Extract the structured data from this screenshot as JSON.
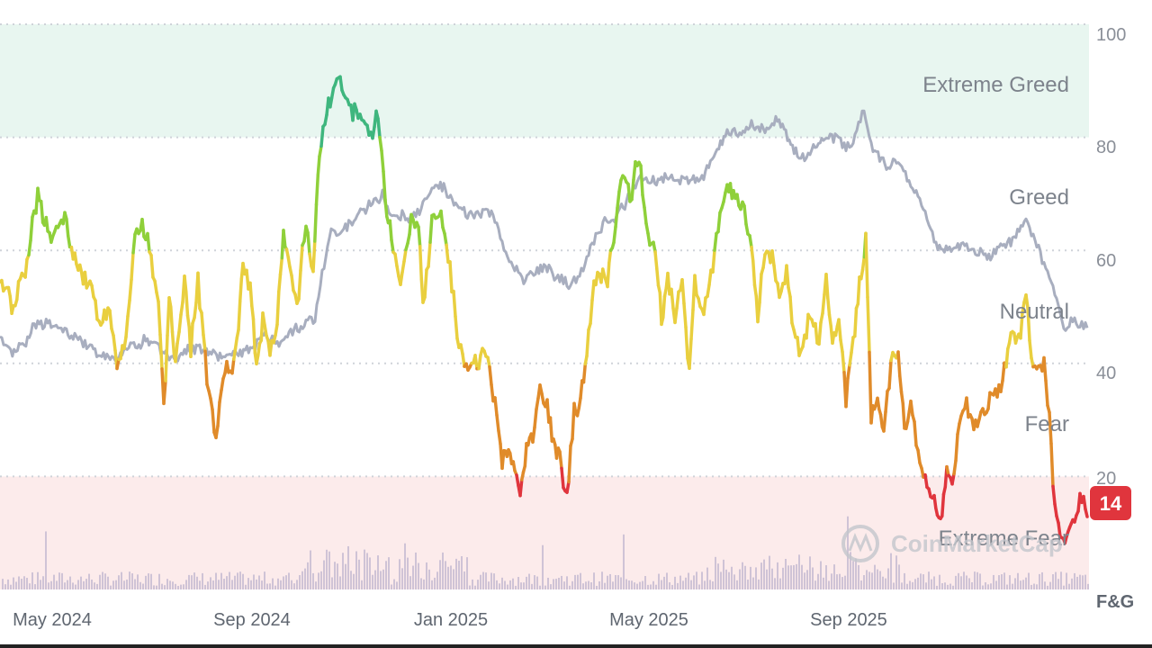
{
  "chart_data": {
    "type": "line",
    "axis_title": "F&G",
    "ylim": [
      0,
      100
    ],
    "y_ticks": [
      20,
      40,
      60,
      80,
      100
    ],
    "x_ticks": [
      "May 2024",
      "Sep 2024",
      "Jan 2025",
      "May 2025",
      "Sep 2025"
    ],
    "grid": true,
    "zones": [
      {
        "name": "Extreme Greed",
        "from": 80,
        "to": 100,
        "color": "#e8f6f0"
      },
      {
        "name": "Greed",
        "from": 60,
        "to": 80
      },
      {
        "name": "Neutral",
        "from": 40,
        "to": 60
      },
      {
        "name": "Fear",
        "from": 20,
        "to": 40
      },
      {
        "name": "Extreme Fear",
        "from": 0,
        "to": 20,
        "color": "#fcebeb"
      }
    ],
    "current_value": "14",
    "watermark": "CoinMarketCap",
    "colors": {
      "extreme_greed": "#3fb67e",
      "greed": "#8fd03a",
      "neutral": "#e9cf3f",
      "fear": "#e08b2a",
      "extreme_fear": "#e0353d",
      "price_line": "#a8aebf",
      "volume": "#cfc3d6",
      "badge": "#e0353d"
    },
    "series": [
      {
        "role": "index",
        "points": [
          [
            0,
            55
          ],
          [
            15,
            50
          ],
          [
            30,
            58
          ],
          [
            42,
            70
          ],
          [
            55,
            62
          ],
          [
            72,
            66
          ],
          [
            85,
            58
          ],
          [
            100,
            54
          ],
          [
            112,
            47
          ],
          [
            122,
            49
          ],
          [
            130,
            40
          ],
          [
            140,
            44
          ],
          [
            150,
            62
          ],
          [
            158,
            66
          ],
          [
            168,
            58
          ],
          [
            176,
            50
          ],
          [
            182,
            32
          ],
          [
            188,
            52
          ],
          [
            195,
            40
          ],
          [
            205,
            56
          ],
          [
            212,
            42
          ],
          [
            220,
            55
          ],
          [
            230,
            38
          ],
          [
            240,
            27
          ],
          [
            250,
            40
          ],
          [
            258,
            38
          ],
          [
            265,
            46
          ],
          [
            270,
            58
          ],
          [
            278,
            54
          ],
          [
            285,
            40
          ],
          [
            292,
            48
          ],
          [
            300,
            41
          ],
          [
            308,
            48
          ],
          [
            315,
            64
          ],
          [
            322,
            58
          ],
          [
            330,
            50
          ],
          [
            340,
            66
          ],
          [
            348,
            55
          ],
          [
            355,
            78
          ],
          [
            365,
            86
          ],
          [
            378,
            90
          ],
          [
            390,
            84
          ],
          [
            400,
            85
          ],
          [
            410,
            80
          ],
          [
            420,
            84
          ],
          [
            428,
            70
          ],
          [
            435,
            62
          ],
          [
            445,
            55
          ],
          [
            455,
            64
          ],
          [
            465,
            66
          ],
          [
            470,
            50
          ],
          [
            480,
            65
          ],
          [
            490,
            66
          ],
          [
            500,
            56
          ],
          [
            510,
            44
          ],
          [
            520,
            38
          ],
          [
            530,
            40
          ],
          [
            540,
            42
          ],
          [
            550,
            33
          ],
          [
            558,
            22
          ],
          [
            565,
            25
          ],
          [
            572,
            21
          ],
          [
            578,
            17
          ],
          [
            585,
            24
          ],
          [
            592,
            28
          ],
          [
            600,
            35
          ],
          [
            608,
            32
          ],
          [
            615,
            25
          ],
          [
            622,
            24
          ],
          [
            630,
            16
          ],
          [
            638,
            31
          ],
          [
            645,
            34
          ],
          [
            652,
            42
          ],
          [
            660,
            53
          ],
          [
            668,
            56
          ],
          [
            675,
            55
          ],
          [
            682,
            62
          ],
          [
            690,
            74
          ],
          [
            700,
            69
          ],
          [
            710,
            77
          ],
          [
            720,
            62
          ],
          [
            728,
            60
          ],
          [
            735,
            48
          ],
          [
            742,
            56
          ],
          [
            750,
            48
          ],
          [
            758,
            56
          ],
          [
            766,
            38
          ],
          [
            772,
            54
          ],
          [
            780,
            48
          ],
          [
            790,
            56
          ],
          [
            800,
            66
          ],
          [
            808,
            71
          ],
          [
            815,
            70
          ],
          [
            825,
            68
          ],
          [
            835,
            62
          ],
          [
            842,
            48
          ],
          [
            850,
            60
          ],
          [
            858,
            58
          ],
          [
            866,
            52
          ],
          [
            874,
            56
          ],
          [
            882,
            44
          ],
          [
            890,
            42
          ],
          [
            900,
            48
          ],
          [
            910,
            44
          ],
          [
            918,
            54
          ],
          [
            925,
            44
          ],
          [
            932,
            48
          ],
          [
            940,
            34
          ],
          [
            948,
            43
          ],
          [
            955,
            54
          ],
          [
            962,
            62
          ],
          [
            968,
            30
          ],
          [
            975,
            35
          ],
          [
            982,
            28
          ],
          [
            990,
            40
          ],
          [
            998,
            43
          ],
          [
            1005,
            28
          ],
          [
            1012,
            33
          ],
          [
            1020,
            24
          ],
          [
            1030,
            18
          ],
          [
            1038,
            16
          ],
          [
            1045,
            12
          ],
          [
            1052,
            20
          ],
          [
            1060,
            19
          ],
          [
            1066,
            30
          ],
          [
            1074,
            33
          ],
          [
            1082,
            28
          ],
          [
            1090,
            31
          ],
          [
            1100,
            33
          ],
          [
            1110,
            36
          ],
          [
            1118,
            40
          ],
          [
            1125,
            45
          ],
          [
            1132,
            44
          ],
          [
            1140,
            53
          ],
          [
            1146,
            40
          ],
          [
            1152,
            38
          ],
          [
            1160,
            40
          ],
          [
            1166,
            30
          ],
          [
            1172,
            15
          ],
          [
            1178,
            10
          ],
          [
            1185,
            9
          ],
          [
            1192,
            12
          ],
          [
            1200,
            15
          ],
          [
            1208,
            14
          ]
        ]
      },
      {
        "role": "price",
        "points": [
          [
            0,
            45
          ],
          [
            10,
            42
          ],
          [
            25,
            43
          ],
          [
            40,
            47
          ],
          [
            55,
            47
          ],
          [
            70,
            46
          ],
          [
            85,
            45
          ],
          [
            100,
            43
          ],
          [
            115,
            41
          ],
          [
            130,
            41
          ],
          [
            145,
            43
          ],
          [
            160,
            44
          ],
          [
            175,
            43
          ],
          [
            190,
            41
          ],
          [
            205,
            42
          ],
          [
            220,
            43
          ],
          [
            235,
            42
          ],
          [
            250,
            41
          ],
          [
            265,
            42
          ],
          [
            280,
            43
          ],
          [
            295,
            45
          ],
          [
            310,
            44
          ],
          [
            325,
            46
          ],
          [
            340,
            47
          ],
          [
            350,
            48
          ],
          [
            358,
            56
          ],
          [
            368,
            63
          ],
          [
            380,
            63
          ],
          [
            395,
            66
          ],
          [
            410,
            68
          ],
          [
            425,
            70
          ],
          [
            432,
            67
          ],
          [
            445,
            66
          ],
          [
            458,
            66
          ],
          [
            470,
            68
          ],
          [
            482,
            71
          ],
          [
            495,
            71
          ],
          [
            510,
            67
          ],
          [
            525,
            66
          ],
          [
            540,
            67
          ],
          [
            552,
            65
          ],
          [
            560,
            60
          ],
          [
            570,
            57
          ],
          [
            580,
            55
          ],
          [
            595,
            56
          ],
          [
            610,
            57
          ],
          [
            620,
            55
          ],
          [
            630,
            54
          ],
          [
            640,
            55
          ],
          [
            650,
            57
          ],
          [
            660,
            62
          ],
          [
            672,
            65
          ],
          [
            685,
            66
          ],
          [
            698,
            69
          ],
          [
            710,
            73
          ],
          [
            722,
            72
          ],
          [
            735,
            73
          ],
          [
            750,
            73
          ],
          [
            765,
            72
          ],
          [
            780,
            73
          ],
          [
            795,
            77
          ],
          [
            808,
            81
          ],
          [
            820,
            81
          ],
          [
            835,
            82
          ],
          [
            850,
            81
          ],
          [
            862,
            83
          ],
          [
            875,
            80
          ],
          [
            888,
            76
          ],
          [
            900,
            77
          ],
          [
            915,
            80
          ],
          [
            928,
            80
          ],
          [
            940,
            78
          ],
          [
            950,
            80
          ],
          [
            960,
            85
          ],
          [
            970,
            78
          ],
          [
            985,
            75
          ],
          [
            998,
            76
          ],
          [
            1010,
            72
          ],
          [
            1022,
            69
          ],
          [
            1032,
            65
          ],
          [
            1042,
            60
          ],
          [
            1055,
            60
          ],
          [
            1068,
            61
          ],
          [
            1080,
            60
          ],
          [
            1095,
            59
          ],
          [
            1110,
            60
          ],
          [
            1125,
            62
          ],
          [
            1140,
            65
          ],
          [
            1152,
            61
          ],
          [
            1162,
            57
          ],
          [
            1170,
            54
          ],
          [
            1176,
            50
          ],
          [
            1182,
            46
          ],
          [
            1190,
            47
          ],
          [
            1200,
            47
          ],
          [
            1208,
            46
          ]
        ]
      }
    ]
  }
}
